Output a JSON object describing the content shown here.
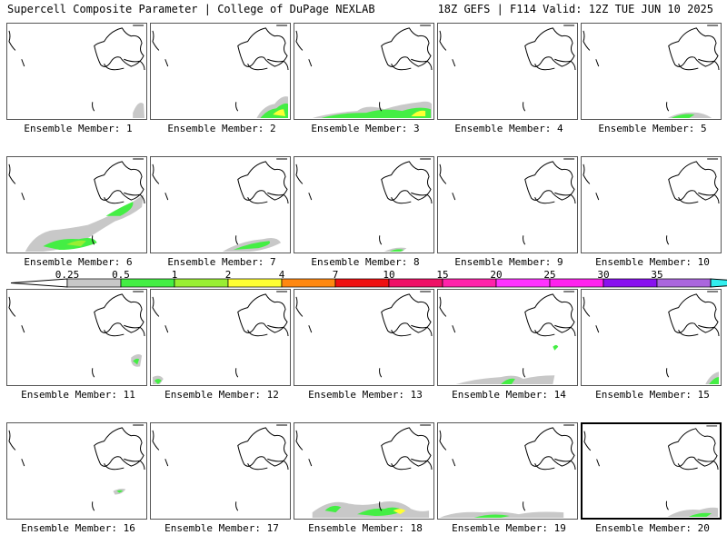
{
  "header": {
    "left": "Supercell Composite Parameter | College of DuPage NEXLAB",
    "right": "18Z GEFS | F114 Valid: 12Z TUE JUN 10 2025"
  },
  "colorbar": {
    "ticks": [
      "0.25",
      "0.5",
      "1",
      "2",
      "4",
      "7",
      "10",
      "15",
      "20",
      "25",
      "30",
      "35"
    ],
    "colors": [
      "#c8c8c8",
      "#44ee44",
      "#99ee33",
      "#ffff33",
      "#ff8811",
      "#ee1111",
      "#ee1166",
      "#ff22aa",
      "#ff33ff",
      "#ff22ee",
      "#8811ee",
      "#aa66dd",
      "#33eeee"
    ]
  },
  "panels": [
    {
      "label": "Ensemble Member: 1"
    },
    {
      "label": "Ensemble Member: 2"
    },
    {
      "label": "Ensemble Member: 3"
    },
    {
      "label": "Ensemble Member: 4"
    },
    {
      "label": "Ensemble Member: 5"
    },
    {
      "label": "Ensemble Member: 6"
    },
    {
      "label": "Ensemble Member: 7"
    },
    {
      "label": "Ensemble Member: 8"
    },
    {
      "label": "Ensemble Member: 9"
    },
    {
      "label": "Ensemble Member: 10"
    },
    {
      "label": "Ensemble Member: 11"
    },
    {
      "label": "Ensemble Member: 12"
    },
    {
      "label": "Ensemble Member: 13"
    },
    {
      "label": "Ensemble Member: 14"
    },
    {
      "label": "Ensemble Member: 15"
    },
    {
      "label": "Ensemble Member: 16"
    },
    {
      "label": "Ensemble Member: 17"
    },
    {
      "label": "Ensemble Member: 18"
    },
    {
      "label": "Ensemble Member: 19"
    },
    {
      "label": "Ensemble Member: 20"
    }
  ]
}
